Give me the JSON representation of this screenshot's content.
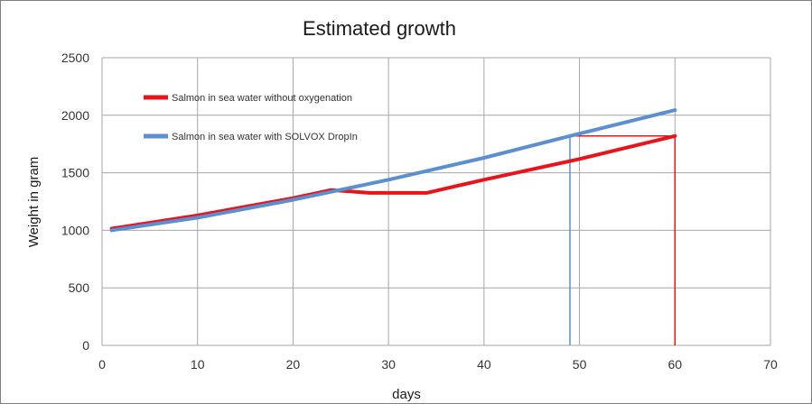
{
  "chart_data": {
    "type": "line",
    "title": "Estimated growth",
    "xlabel": "days",
    "ylabel": "Weight in gram",
    "xlim": [
      0,
      70
    ],
    "ylim": [
      0,
      2500
    ],
    "x_ticks": [
      0,
      10,
      20,
      30,
      40,
      50,
      60,
      70
    ],
    "y_ticks": [
      0,
      500,
      1000,
      1500,
      2000,
      2500
    ],
    "grid": true,
    "legend_position": "top-left",
    "series": [
      {
        "name": "Salmon in sea water without oxygenation",
        "color": "#e8141b",
        "points": [
          [
            1,
            1015
          ],
          [
            10,
            1130
          ],
          [
            20,
            1280
          ],
          [
            24,
            1350
          ],
          [
            28,
            1325
          ],
          [
            34,
            1325
          ],
          [
            40,
            1440
          ],
          [
            50,
            1620
          ],
          [
            60,
            1820
          ]
        ]
      },
      {
        "name": "Salmon in sea water with SOLVOX DropIn",
        "color": "#5b8fd0",
        "points": [
          [
            1,
            1000
          ],
          [
            10,
            1110
          ],
          [
            20,
            1265
          ],
          [
            30,
            1440
          ],
          [
            40,
            1630
          ],
          [
            49,
            1820
          ],
          [
            60,
            2045
          ]
        ]
      }
    ],
    "annotations": [
      {
        "type": "vertical",
        "x": 49,
        "from": 0,
        "to": 1820,
        "color": "#5b8fd0"
      },
      {
        "type": "horizontal",
        "y": 1820,
        "from": 49,
        "to": 60,
        "color": "#e8141b"
      },
      {
        "type": "vertical",
        "x": 60,
        "from": 0,
        "to": 1820,
        "color": "#e8141b"
      }
    ]
  }
}
